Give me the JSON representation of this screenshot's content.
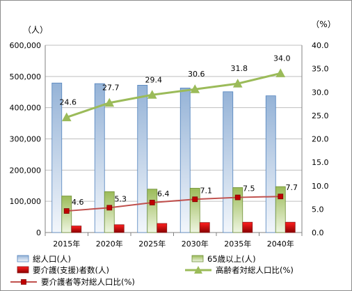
{
  "chart_data": {
    "type": "bar",
    "categories": [
      "2015年",
      "2020年",
      "2025年",
      "2030年",
      "2035年",
      "2040年"
    ],
    "y_left_unit": "（人）",
    "y_right_unit": "（%）",
    "ylim_left": [
      0,
      600000
    ],
    "ylim_right": [
      0.0,
      40.0
    ],
    "y_left_ticks": [
      "0",
      "100,000",
      "200,000",
      "300,000",
      "400,000",
      "500,000",
      "600,000"
    ],
    "y_right_ticks": [
      "0.0",
      "5.0",
      "10.0",
      "15.0",
      "20.0",
      "25.0",
      "30.0",
      "35.0",
      "40.0"
    ],
    "grid": "horizontal",
    "legend_position": "bottom",
    "series": [
      {
        "name": "総人口(人)",
        "kind": "bar",
        "axis": "left",
        "color": "#4f81bd",
        "values": [
          479000,
          477000,
          472000,
          463000,
          451000,
          438000
        ]
      },
      {
        "name": "65歳以上(人)",
        "kind": "bar",
        "axis": "left",
        "color": "#9bbb59",
        "values": [
          117000,
          131000,
          139000,
          142000,
          144000,
          147000
        ]
      },
      {
        "name": "要介護(支援)者数(人)",
        "kind": "bar",
        "axis": "left",
        "color": "#c0504d",
        "values": [
          21000,
          25000,
          29000,
          32000,
          33000,
          33000
        ]
      },
      {
        "name": "高齢者対総人口比(%)",
        "kind": "line",
        "axis": "right",
        "color": "#9bbb59",
        "marker": "triangle",
        "values": [
          24.6,
          27.7,
          29.4,
          30.6,
          31.8,
          34.0
        ],
        "labels": [
          "24.6",
          "27.7",
          "29.4",
          "30.6",
          "31.8",
          "34.0"
        ]
      },
      {
        "name": "要介護者等対総人口比(%)",
        "kind": "line",
        "axis": "right",
        "color": "#c0504d",
        "marker": "square",
        "values": [
          4.6,
          5.3,
          6.4,
          7.1,
          7.5,
          7.7
        ],
        "labels": [
          "4.6",
          "5.3",
          "6.4",
          "7.1",
          "7.5",
          "7.7"
        ]
      }
    ]
  }
}
